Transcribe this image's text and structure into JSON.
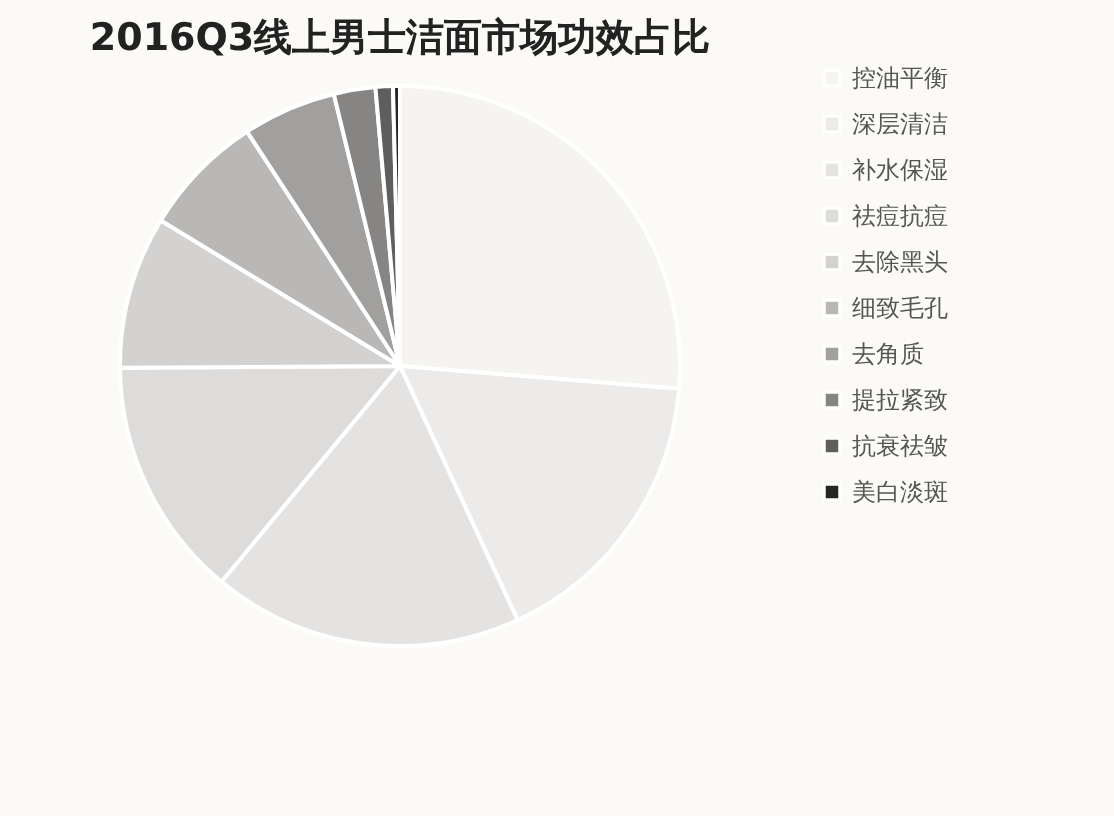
{
  "chart_data": {
    "type": "pie",
    "title": "2016Q3线上男士洁面市场功效占比",
    "categories": [
      "控油平衡",
      "深层清洁",
      "补水保湿",
      "祛痘抗痘",
      "去除黑头",
      "细致毛孔",
      "去角质",
      "提拉紧致",
      "抗衰祛皱",
      "美白淡斑"
    ],
    "values": [
      26.3,
      16.8,
      17.9,
      13.9,
      8.8,
      7.1,
      5.4,
      2.4,
      1.0,
      0.4
    ],
    "colors": [
      "#f6f4f1",
      "#ecebe9",
      "#e4e3e1",
      "#dddcda",
      "#d3d2d0",
      "#b9b8b6",
      "#a1a09e",
      "#868583",
      "#5f5e5d",
      "#262626"
    ],
    "legend": "right"
  }
}
